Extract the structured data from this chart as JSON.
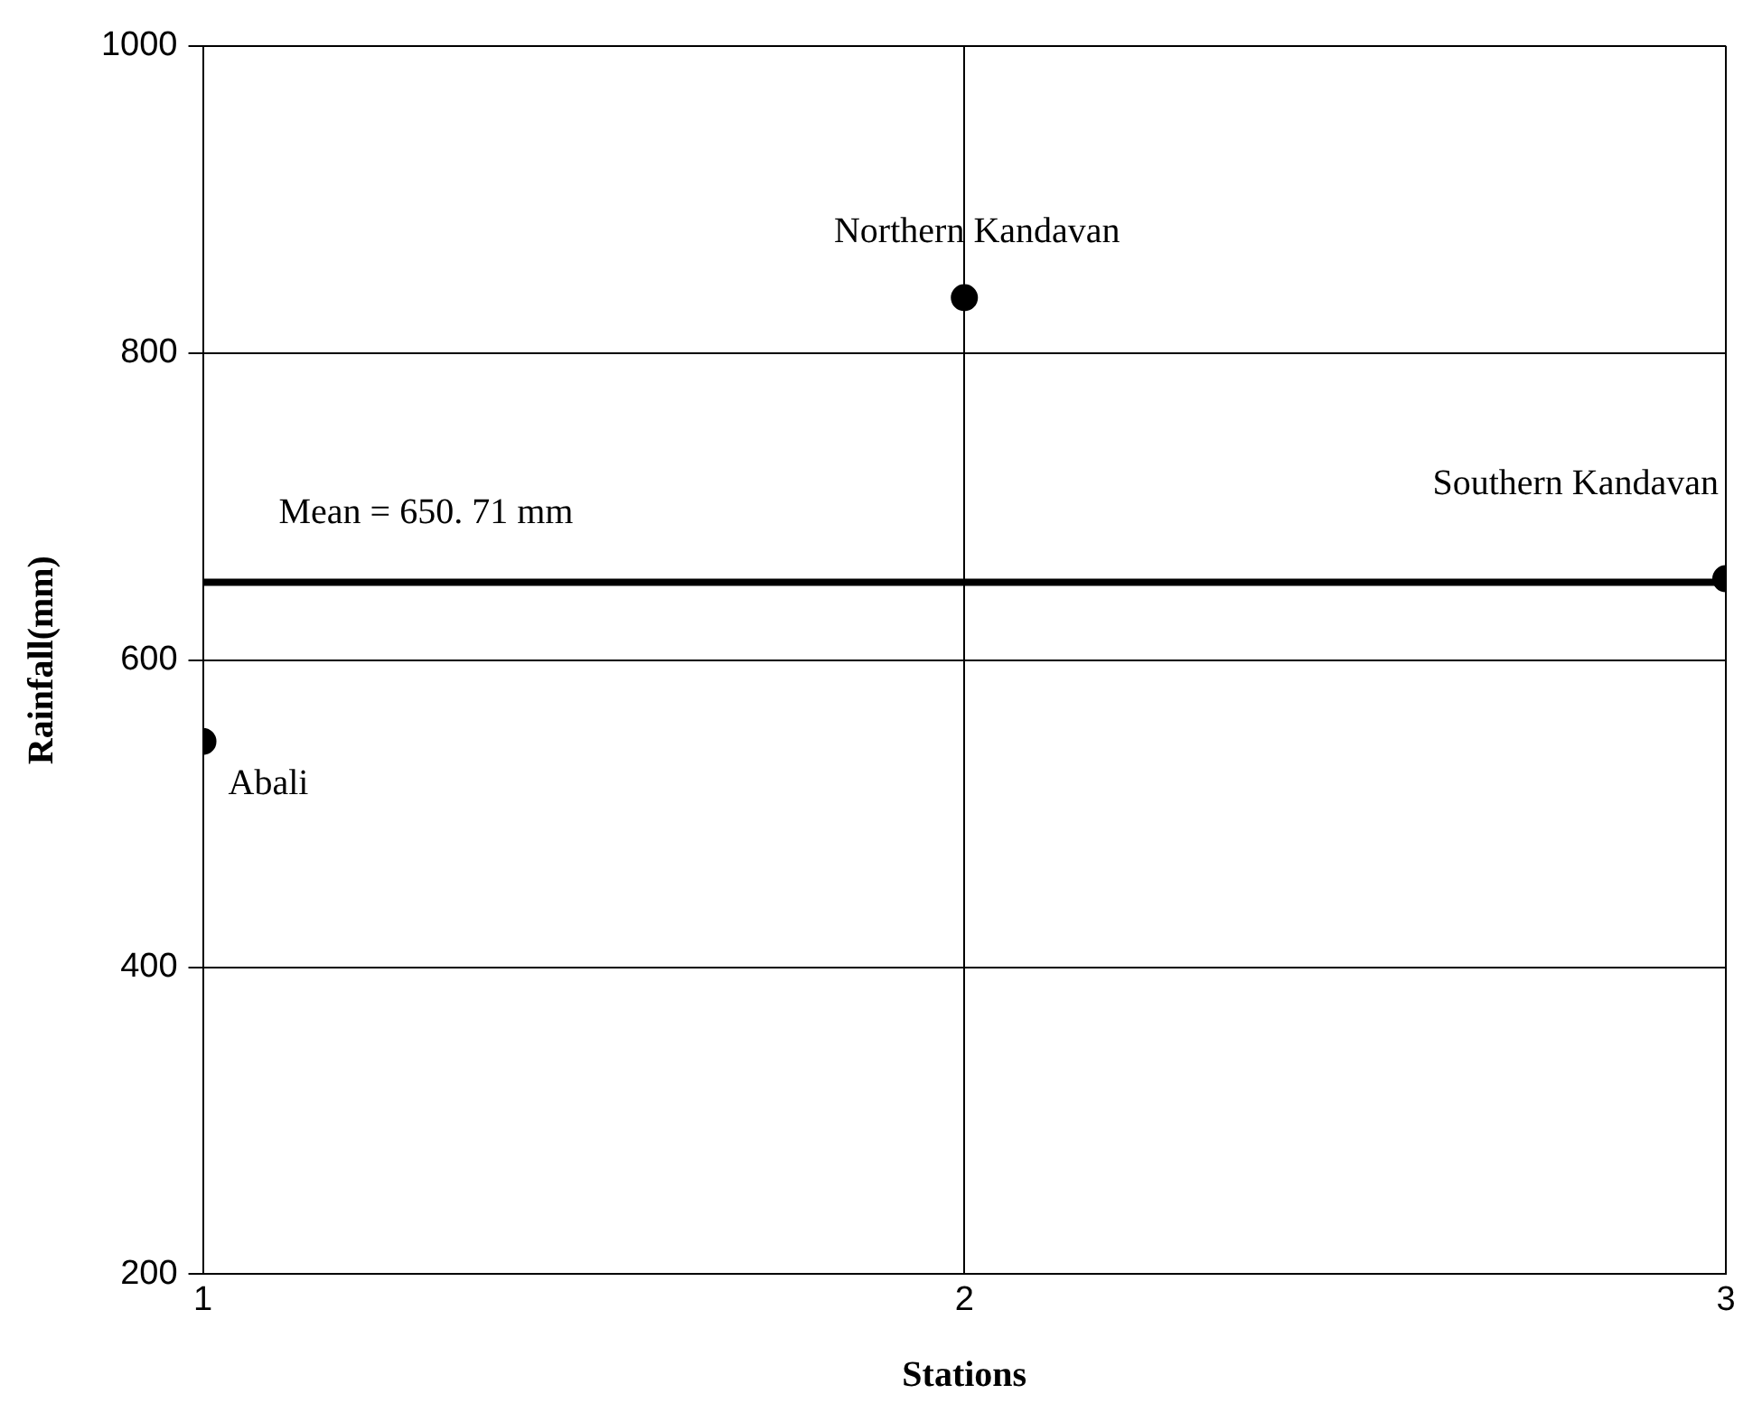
{
  "chart_data": {
    "type": "scatter",
    "xlabel": "Stations",
    "ylabel": "Rainfall(mm)",
    "x": [
      1,
      2,
      3
    ],
    "series": [
      {
        "color": "#000000",
        "values": [
          547,
          836,
          653
        ]
      }
    ],
    "xlim": [
      1,
      3
    ],
    "xticks": [
      1,
      2,
      3
    ],
    "ylim": [
      200,
      1000
    ],
    "yticks": [
      200,
      400,
      600,
      800,
      1000
    ],
    "grid": true,
    "legend": false,
    "marker": "circle",
    "ref_lines": [
      {
        "axis": "y",
        "value": 650.71,
        "color": "#000000",
        "line_style": "solid"
      }
    ],
    "annotations": [
      {
        "text": "Mean = 650. 71 mm",
        "x": 1,
        "y": 650.71
      },
      {
        "text": "Abali",
        "x": 1,
        "y": 547
      },
      {
        "text": "Northern Kandavan",
        "x": 2,
        "y": 836
      },
      {
        "text": "Southern Kandavan",
        "x": 3,
        "y": 653
      }
    ]
  }
}
